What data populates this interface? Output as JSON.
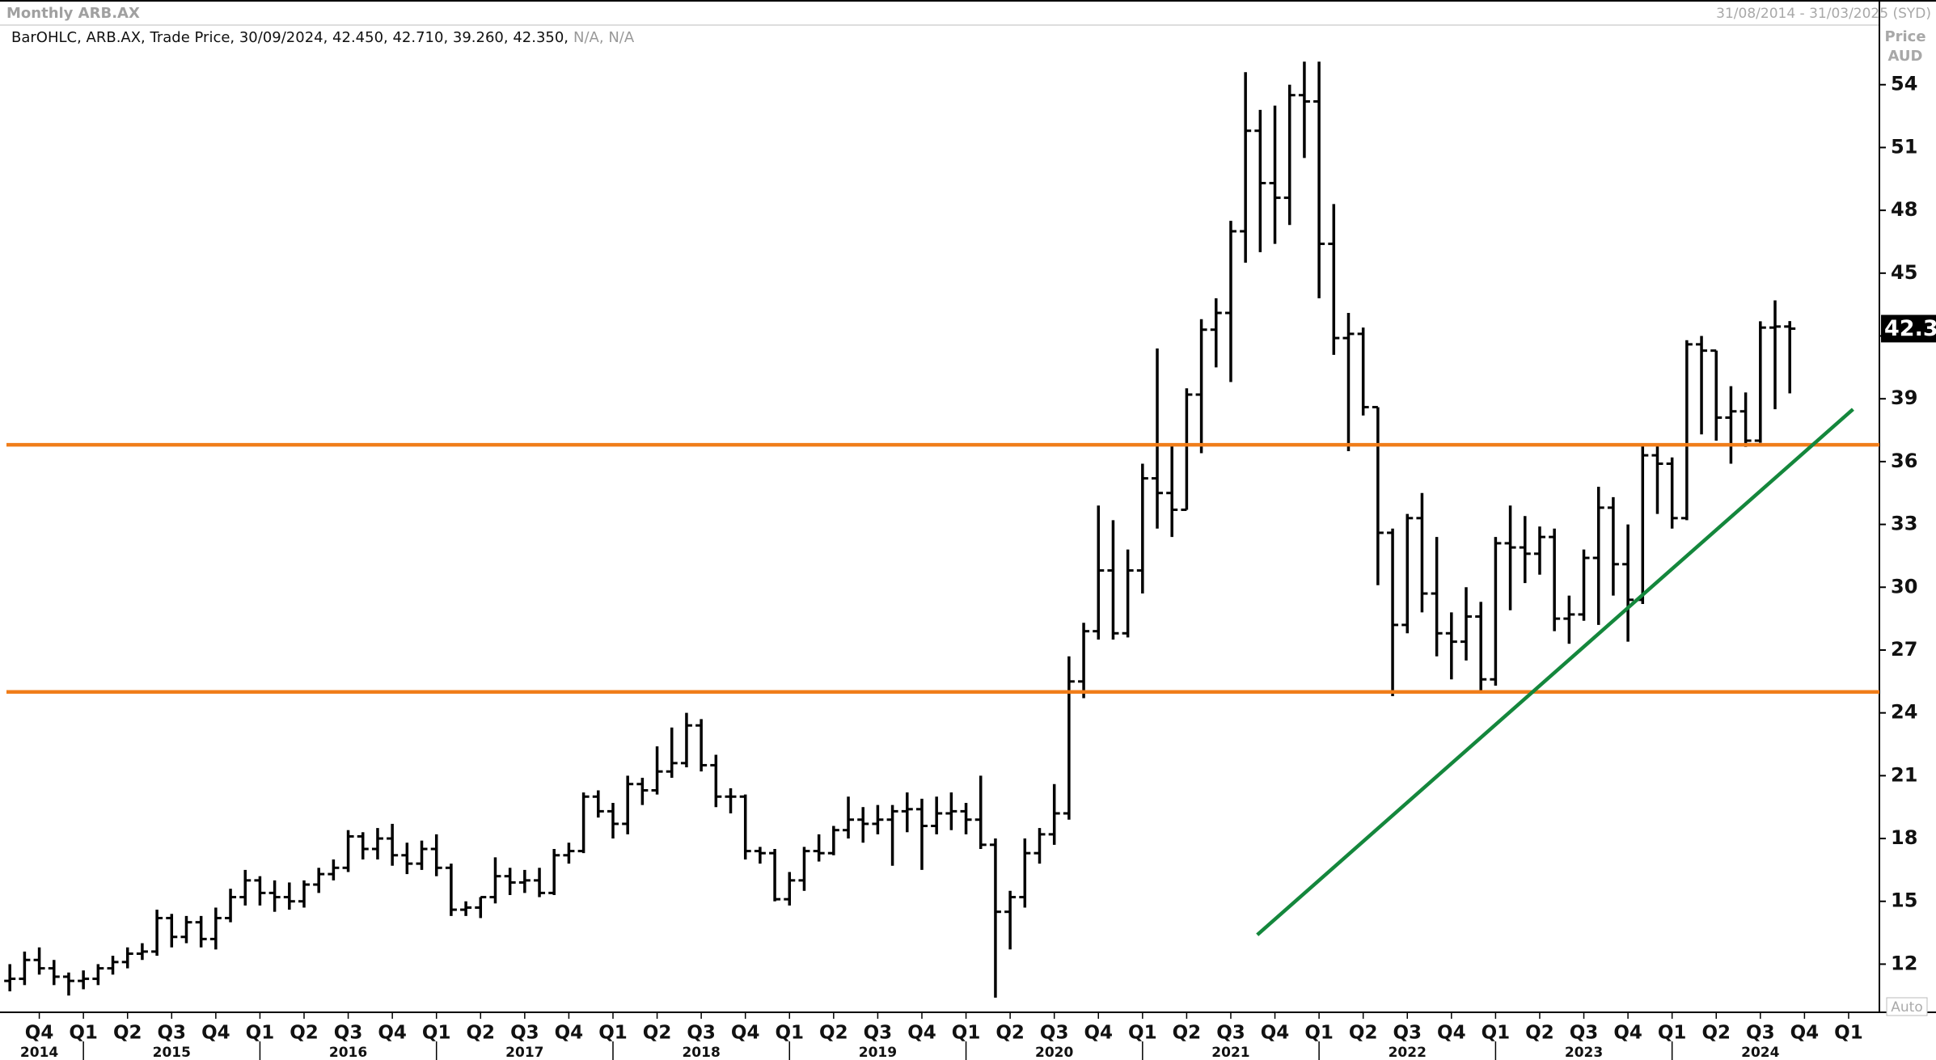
{
  "chart_data": {
    "type": "ohlc",
    "title": "Monthly ARB.AX",
    "date_range": "31/08/2014 - 31/03/2025 (SYD)",
    "legend_text": "BarOHLC, ARB.AX, Trade Price, 30/09/2024, 42.450, 42.710, 39.260, 42.350,",
    "legend_na": "N/A, N/A",
    "axis_label": [
      "Price",
      "AUD"
    ],
    "auto_button": "Auto",
    "color": "#000000",
    "ylim": [
      9.7,
      56.5
    ],
    "yticks": [
      12,
      15,
      18,
      21,
      24,
      27,
      30,
      33,
      36,
      39,
      42,
      45,
      48,
      51,
      54
    ],
    "quarters": [
      "Q4",
      "Q1",
      "Q2",
      "Q3",
      "Q4",
      "Q1",
      "Q2",
      "Q3",
      "Q4",
      "Q1",
      "Q2",
      "Q3",
      "Q4",
      "Q1",
      "Q2",
      "Q3",
      "Q4",
      "Q1",
      "Q2",
      "Q3",
      "Q4",
      "Q1",
      "Q2",
      "Q3",
      "Q4",
      "Q1",
      "Q2",
      "Q3",
      "Q4",
      "Q1",
      "Q2",
      "Q3",
      "Q4",
      "Q1",
      "Q2",
      "Q3",
      "Q4",
      "Q1",
      "Q2",
      "Q3",
      "Q4",
      "Q1"
    ],
    "years": [
      "2014",
      "2015",
      "2016",
      "2017",
      "2018",
      "2019",
      "2020",
      "2021",
      "2022",
      "2023",
      "2024"
    ],
    "ohlc": {
      "open": [
        11.2,
        11.3,
        12.2,
        11.8,
        11.4,
        11.2,
        11.3,
        11.8,
        12.1,
        12.5,
        12.6,
        14.2,
        13.3,
        14,
        13.2,
        14.2,
        15.2,
        16,
        15.4,
        15.2,
        15,
        15.8,
        16.3,
        16.6,
        18.1,
        17.5,
        18,
        17.2,
        16.8,
        17.5,
        16.6,
        14.6,
        14.7,
        15.2,
        16.2,
        15.9,
        16,
        15.4,
        17.2,
        17.4,
        20,
        19.3,
        18.7,
        20.6,
        20.3,
        21.2,
        21.6,
        23.4,
        21.5,
        20,
        20,
        17.4,
        17.3,
        15.1,
        16,
        17.4,
        17.3,
        18.4,
        18.9,
        18.7,
        18.9,
        19.3,
        19.4,
        18.6,
        19.2,
        19.3,
        18.9,
        17.7,
        14.5,
        15.2,
        17.3,
        18.2,
        19.2,
        25.5,
        27.9,
        30.8,
        27.8,
        30.8,
        35.2,
        34.5,
        33.7,
        39.2,
        42.3,
        43.1,
        47,
        51.8,
        49.3,
        48.6,
        53.5,
        53.2,
        46.4,
        41.9,
        42.1,
        38.6,
        32.6,
        28.2,
        33.3,
        29.7,
        27.8,
        27.4,
        28.6,
        25.6,
        32.1,
        31.9,
        31.6,
        32.4,
        28.5,
        28.7,
        31.4,
        33.8,
        31.1,
        29.4,
        36.3,
        35.9,
        33.3,
        41.6,
        41.3,
        38.1,
        38.4,
        37,
        42.4,
        42.45
      ],
      "high": [
        12,
        12.6,
        12.8,
        12.2,
        11.6,
        11.7,
        12,
        12.4,
        12.8,
        13,
        14.6,
        14.4,
        14.3,
        14.3,
        14.7,
        15.6,
        16.5,
        16.2,
        16,
        15.9,
        16,
        16.6,
        17,
        18.4,
        18.3,
        18.5,
        18.7,
        17.8,
        17.9,
        18.2,
        16.8,
        15,
        15.2,
        17.1,
        16.6,
        16.5,
        16.6,
        17.5,
        17.8,
        20.2,
        20.3,
        19.7,
        21,
        20.9,
        22.4,
        23.3,
        24,
        23.7,
        22,
        20.4,
        20.1,
        17.6,
        17.5,
        16.4,
        17.6,
        18.2,
        18.6,
        20,
        19.5,
        19.6,
        19.6,
        20.2,
        19.9,
        20,
        20.2,
        19.7,
        21,
        18,
        15.5,
        18,
        18.5,
        20.6,
        26.7,
        28.3,
        33.9,
        33.2,
        31.8,
        35.9,
        41.4,
        36.8,
        39.5,
        42.8,
        43.8,
        47.5,
        54.6,
        52.8,
        53,
        54,
        55.1,
        55.1,
        48.3,
        43.1,
        42.4,
        38.6,
        32.8,
        33.5,
        34.5,
        32.4,
        28.8,
        30,
        29.3,
        32.4,
        33.9,
        33.4,
        32.9,
        32.8,
        29.6,
        31.8,
        34.8,
        34.3,
        33,
        36.8,
        36.8,
        36.2,
        41.8,
        42,
        41.3,
        39.6,
        39.3,
        42.7,
        43.7,
        42.71
      ],
      "low": [
        10.7,
        11,
        11.5,
        11,
        10.5,
        10.8,
        11,
        11.5,
        11.8,
        12.2,
        12.4,
        12.8,
        13,
        12.8,
        12.7,
        14,
        14.8,
        14.8,
        14.5,
        14.6,
        14.7,
        15.4,
        16,
        16.4,
        17,
        17,
        16.7,
        16.3,
        16.5,
        16.2,
        14.3,
        14.3,
        14.2,
        14.9,
        15.3,
        15.4,
        15.2,
        15.3,
        16.8,
        17.3,
        19,
        18,
        18.2,
        19.6,
        20.1,
        20.9,
        21.4,
        21.2,
        19.5,
        19.2,
        17,
        16.8,
        15,
        14.8,
        15.5,
        16.9,
        17.2,
        18,
        17.8,
        18.2,
        16.7,
        18.3,
        16.5,
        18.2,
        18.4,
        18.2,
        17.5,
        10.4,
        12.7,
        14.7,
        16.8,
        17.7,
        18.9,
        24.7,
        27.5,
        27.5,
        27.6,
        29.7,
        32.8,
        32.4,
        33.7,
        36.4,
        40.5,
        39.8,
        45.5,
        46,
        46.4,
        47.3,
        50.5,
        43.8,
        41.1,
        36.5,
        38.2,
        30.1,
        24.8,
        27.8,
        28.8,
        26.7,
        25.6,
        26.5,
        25,
        25.3,
        28.9,
        30.2,
        30.6,
        27.9,
        27.3,
        28.4,
        28.2,
        29.6,
        27.4,
        29.2,
        33.5,
        32.8,
        33.2,
        37.3,
        37,
        35.9,
        36.7,
        36.9,
        38.5,
        39.26
      ],
      "close": [
        11.3,
        12.2,
        11.8,
        11.4,
        11.2,
        11.3,
        11.8,
        12.1,
        12.5,
        12.6,
        14.2,
        13.3,
        14,
        13.2,
        14.2,
        15.2,
        16,
        15.4,
        15.2,
        15,
        15.8,
        16.3,
        16.6,
        18.1,
        17.5,
        18,
        17.2,
        16.8,
        17.5,
        16.6,
        14.6,
        14.7,
        15.2,
        16.2,
        15.9,
        16,
        15.4,
        17.2,
        17.4,
        20,
        19.3,
        18.7,
        20.6,
        20.3,
        21.2,
        21.6,
        23.4,
        21.5,
        20,
        20,
        17.4,
        17.3,
        15.1,
        16,
        17.4,
        17.3,
        18.4,
        18.9,
        18.7,
        18.9,
        19.3,
        19.4,
        18.6,
        19.2,
        19.3,
        18.9,
        17.7,
        14.5,
        15.2,
        17.3,
        18.2,
        19.2,
        25.5,
        27.9,
        30.8,
        27.8,
        30.8,
        35.2,
        34.5,
        33.7,
        39.2,
        42.3,
        43.1,
        47,
        51.8,
        49.3,
        48.6,
        53.5,
        53.2,
        46.4,
        41.9,
        42.1,
        38.6,
        32.6,
        28.2,
        33.3,
        29.7,
        27.8,
        27.4,
        28.6,
        25.6,
        32.1,
        31.9,
        31.6,
        32.4,
        28.5,
        28.7,
        31.4,
        33.8,
        31.1,
        29.4,
        36.3,
        35.9,
        33.3,
        41.6,
        41.3,
        38.1,
        38.4,
        37,
        42.4,
        42.45,
        42.35
      ]
    },
    "hlines": [
      {
        "value": 36.8,
        "color": "#f07d1a"
      },
      {
        "value": 25.0,
        "color": "#f07d1a"
      }
    ],
    "trendline": {
      "x": [
        84.8,
        125.3
      ],
      "y": [
        13.4,
        38.5
      ],
      "color": "#14873c"
    }
  }
}
